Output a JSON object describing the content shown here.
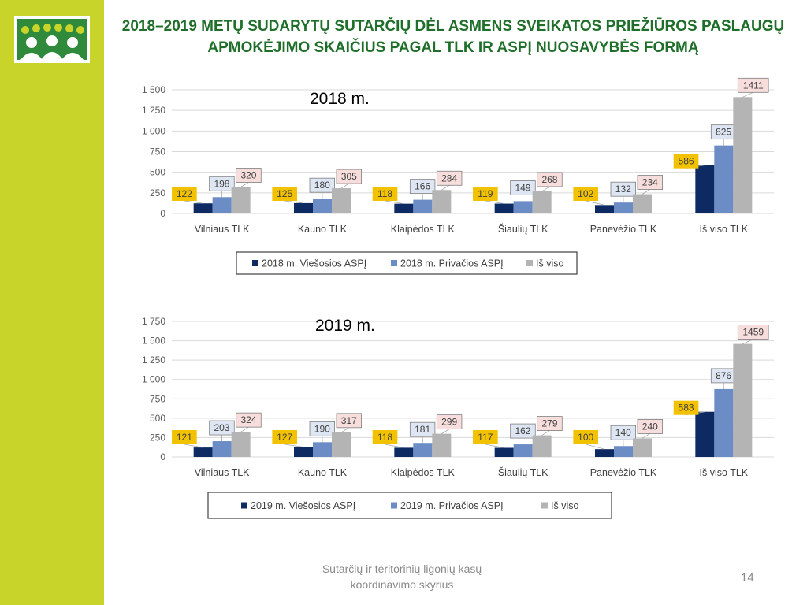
{
  "slide": {
    "title_part1": "2018–2019 METŲ SUDARYTŲ ",
    "title_underlined": "SUTARČIŲ ",
    "title_part2": "DĖL ASMENS SVEIKATOS PRIEŽIŪROS PASLAUGŲ",
    "title_line2": "APMOKĖJIMO SKAIČIUS PAGAL TLK IR ASPĮ NUOSAVYBĖS FORMĄ",
    "footer_line1": "Sutarčių ir teritorinių ligonių kasų",
    "footer_line2": "koordinavimo skyrius",
    "page_number": "14"
  },
  "colors": {
    "sidebar": "#c8d42a",
    "title": "#1f6f2b",
    "series_public": "#0d2a63",
    "series_private": "#6b8cc4",
    "series_total": "#b4b4b4",
    "label_public_bg": "#f2c200",
    "label_private_bg": "#dde6f2",
    "label_total_bg": "#f7dedd"
  },
  "chart_data": [
    {
      "type": "bar",
      "title": "2018 m.",
      "categories": [
        "Vilniaus TLK",
        "Kauno TLK",
        "Klaipėdos TLK",
        "Šiaulių TLK",
        "Panevėžio TLK",
        "Iš viso TLK"
      ],
      "series": [
        {
          "name": "2018 m. Viešosios ASPĮ",
          "values": [
            122,
            125,
            118,
            119,
            102,
            586
          ]
        },
        {
          "name": "2018 m. Privačios ASPĮ",
          "values": [
            198,
            180,
            166,
            149,
            132,
            825
          ]
        },
        {
          "name": "Iš viso",
          "values": [
            320,
            305,
            284,
            268,
            234,
            1411
          ]
        }
      ],
      "yticks": [
        "0",
        "250",
        "500",
        "750",
        "1 000",
        "1 250",
        "1 500"
      ],
      "ylim": [
        0,
        1500
      ],
      "grid": true,
      "legend": "bottom"
    },
    {
      "type": "bar",
      "title": "2019 m.",
      "categories": [
        "Vilniaus TLK",
        "Kauno TLK",
        "Klaipėdos TLK",
        "Šiaulių TLK",
        "Panevėžio TLK",
        "Iš viso TLK"
      ],
      "series": [
        {
          "name": "2019 m. Viešosios ASPĮ",
          "values": [
            121,
            127,
            118,
            117,
            100,
            583
          ]
        },
        {
          "name": "2019 m. Privačios ASPĮ",
          "values": [
            203,
            190,
            181,
            162,
            140,
            876
          ]
        },
        {
          "name": "Iš viso",
          "values": [
            324,
            317,
            299,
            279,
            240,
            1459
          ]
        }
      ],
      "yticks": [
        "0",
        "250",
        "500",
        "750",
        "1 000",
        "1 250",
        "1 500",
        "1 750"
      ],
      "ylim": [
        0,
        1750
      ],
      "grid": true,
      "legend": "bottom"
    }
  ]
}
